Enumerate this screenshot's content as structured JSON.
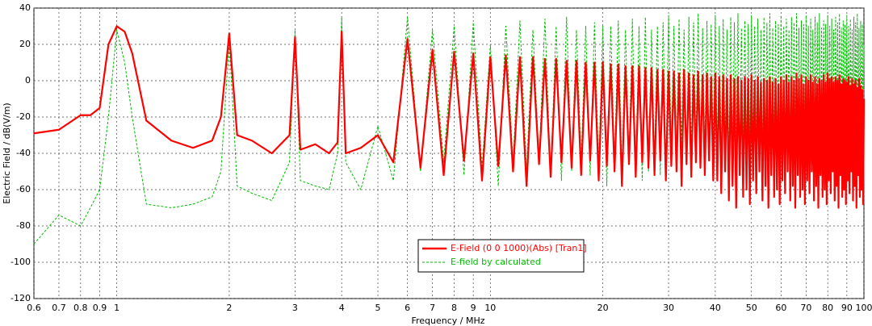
{
  "chart_data": {
    "type": "line",
    "x_label": "Frequency / MHz",
    "y_label": "Electric Field / dB(V/m)",
    "xscale": "log",
    "grid": true,
    "legend_loc": "lower-center",
    "xlim": [
      0.6,
      100
    ],
    "ylim": [
      -120,
      40
    ],
    "xticks": [
      0.6,
      0.7,
      0.8,
      0.9,
      1,
      2,
      3,
      4,
      5,
      6,
      7,
      8,
      9,
      10,
      20,
      30,
      40,
      50,
      60,
      70,
      80,
      90,
      100
    ],
    "yticks": [
      -120,
      -100,
      -80,
      -60,
      -40,
      -20,
      0,
      20,
      40
    ],
    "x": [
      0.6,
      0.7,
      0.8,
      0.85,
      0.9,
      0.95,
      1,
      1.05,
      1.1,
      1.2,
      1.4,
      1.6,
      1.8,
      1.9,
      2,
      2.1,
      2.3,
      2.6,
      2.9,
      3,
      3.1,
      3.4,
      3.7,
      3.9,
      4,
      4.1,
      4.5,
      5,
      5.5,
      6,
      6.5,
      7,
      7.5,
      8,
      8.5,
      9,
      9.5,
      10,
      10.5,
      11,
      11.5,
      12,
      12.5,
      13,
      13.5,
      14,
      14.5,
      15,
      15.5,
      16,
      16.5,
      17,
      17.5,
      18,
      18.5,
      19,
      19.5,
      20,
      20.5,
      21,
      21.5,
      22,
      22.5,
      23,
      23.5,
      24,
      24.5,
      25,
      25.5,
      26,
      26.5,
      27,
      27.5,
      28,
      28.5,
      29,
      29.5,
      30,
      30.5,
      31,
      31.5,
      32,
      32.5,
      33,
      33.5,
      34,
      34.5,
      35,
      35.5,
      36,
      36.5,
      37,
      37.5,
      38,
      38.5,
      39,
      39.5,
      40,
      40.5,
      41,
      41.5,
      42,
      42.5,
      43,
      43.5,
      44,
      44.5,
      45,
      45.5,
      46,
      46.5,
      47,
      47.5,
      48,
      48.5,
      49,
      49.5,
      50,
      50.5,
      51,
      51.5,
      52,
      52.5,
      53,
      53.5,
      54,
      54.5,
      55,
      55.5,
      56,
      56.5,
      57,
      57.5,
      58,
      58.5,
      59,
      59.5,
      60,
      60.5,
      61,
      61.5,
      62,
      62.5,
      63,
      63.5,
      64,
      64.5,
      65,
      65.5,
      66,
      66.5,
      67,
      67.5,
      68,
      68.5,
      69,
      69.5,
      70,
      70.5,
      71,
      71.5,
      72,
      72.5,
      73,
      73.5,
      74,
      74.5,
      75,
      75.5,
      76,
      76.5,
      77,
      77.5,
      78,
      78.5,
      79,
      79.5,
      80,
      80.5,
      81,
      81.5,
      82,
      82.5,
      83,
      83.5,
      84,
      84.5,
      85,
      85.5,
      86,
      86.5,
      87,
      87.5,
      88,
      88.5,
      89,
      89.5,
      90,
      90.5,
      91,
      91.5,
      92,
      92.5,
      93,
      93.5,
      94,
      94.5,
      95,
      95.5,
      96,
      96.5,
      97,
      97.5,
      98,
      98.5,
      99,
      99.5,
      100
    ],
    "series": [
      {
        "name": "E-Field (0 0 1000)(Abs) [Tran1]",
        "color": "#ff0000",
        "linestyle": "solid",
        "values": [
          -29,
          -27,
          -19,
          -19,
          -15,
          20,
          30,
          27,
          15,
          -22,
          -33,
          -37,
          -33,
          -20,
          26,
          -30,
          -33,
          -40,
          -30,
          24,
          -38,
          -35,
          -40,
          -34,
          27,
          -40,
          -37,
          -30,
          -45,
          23,
          -48,
          17,
          -52,
          16,
          -44,
          15,
          -55,
          13,
          -47,
          14,
          -50,
          13,
          -58,
          13,
          -46,
          12,
          -53,
          12,
          -45,
          11,
          -48,
          11,
          -52,
          10,
          -44,
          10,
          -55,
          10,
          -47,
          9,
          -50,
          9,
          -58,
          8,
          -46,
          8,
          -53,
          8,
          -45,
          7,
          -48,
          7,
          -52,
          6,
          -44,
          6,
          -55,
          5,
          -47,
          5,
          -50,
          4,
          -58,
          6,
          -46,
          4,
          -53,
          3,
          -45,
          5,
          -48,
          3,
          -52,
          4,
          -44,
          2,
          -55,
          4,
          -55,
          2,
          -62,
          3,
          -50,
          1,
          -66,
          3,
          -58,
          1,
          -70,
          2,
          -52,
          0,
          -64,
          2,
          -60,
          1,
          -68,
          3,
          -55,
          0,
          -62,
          2,
          -50,
          -1,
          -66,
          1,
          -58,
          0,
          -70,
          2,
          -52,
          -1,
          -64,
          1,
          -60,
          -2,
          -68,
          2,
          -55,
          0,
          -62,
          3,
          -50,
          -1,
          -66,
          2,
          -58,
          0,
          -70,
          4,
          -52,
          1,
          -64,
          3,
          -60,
          -2,
          -68,
          2,
          -55,
          0,
          -62,
          3,
          -50,
          -1,
          -66,
          2,
          -58,
          -2,
          -70,
          1,
          -52,
          0,
          -64,
          3,
          -60,
          -1,
          -68,
          4,
          -55,
          1,
          -62,
          2,
          -50,
          -1,
          -66,
          2,
          -58,
          0,
          -70,
          3,
          -52,
          -2,
          -64,
          1,
          -60,
          0,
          -68,
          -1,
          -55,
          2,
          -62,
          -3,
          -50,
          1,
          -66,
          -2,
          -58,
          0,
          -70,
          -4,
          -52,
          1,
          -64,
          -3,
          -60,
          -5,
          -68,
          -10
        ]
      },
      {
        "name": "E-field by calculated",
        "color": "#00bb00",
        "linestyle": "dashed",
        "values": [
          -90,
          -74,
          -80,
          -70,
          -60,
          -20,
          28,
          10,
          -20,
          -68,
          -70,
          -68,
          -64,
          -50,
          22,
          -58,
          -62,
          -66,
          -45,
          28,
          -55,
          -58,
          -60,
          -40,
          35,
          -45,
          -60,
          -25,
          -55,
          35,
          -50,
          28,
          -45,
          30,
          -52,
          32,
          -48,
          20,
          -58,
          30,
          -46,
          33,
          -50,
          28,
          -44,
          34,
          -53,
          30,
          -55,
          35,
          -50,
          28,
          -45,
          30,
          -52,
          32,
          -48,
          30,
          -58,
          30,
          -46,
          33,
          -50,
          28,
          -44,
          34,
          -53,
          30,
          -55,
          35,
          -50,
          28,
          -45,
          30,
          -52,
          32,
          -48,
          36,
          -38,
          30,
          -42,
          34,
          -35,
          28,
          -45,
          35,
          -40,
          32,
          -36,
          37,
          -44,
          29,
          -39,
          33,
          -41,
          31,
          -37,
          36,
          -38,
          30,
          -42,
          34,
          -35,
          28,
          -45,
          35,
          -40,
          32,
          -36,
          37,
          -44,
          29,
          -39,
          33,
          -41,
          31,
          -37,
          36,
          -38,
          30,
          -42,
          34,
          -35,
          28,
          -45,
          35,
          -40,
          32,
          -36,
          37,
          -44,
          29,
          -39,
          33,
          -41,
          31,
          -37,
          36,
          -38,
          30,
          -42,
          34,
          -35,
          28,
          -45,
          35,
          -40,
          32,
          -36,
          37,
          -44,
          29,
          -39,
          33,
          -41,
          31,
          -37,
          36,
          -38,
          30,
          -42,
          34,
          -35,
          28,
          -45,
          35,
          -40,
          32,
          -36,
          37,
          -44,
          29,
          -39,
          33,
          -41,
          31,
          -37,
          36,
          -38,
          30,
          -42,
          34,
          -35,
          28,
          -45,
          35,
          -40,
          32,
          -36,
          37,
          -44,
          29,
          -39,
          33,
          -41,
          31,
          -37,
          36,
          -38,
          30,
          -42,
          34,
          -35,
          28,
          -45,
          35,
          -40,
          32,
          -36,
          37,
          -44,
          29,
          -39,
          33,
          -41,
          31,
          -37,
          20
        ]
      }
    ]
  }
}
